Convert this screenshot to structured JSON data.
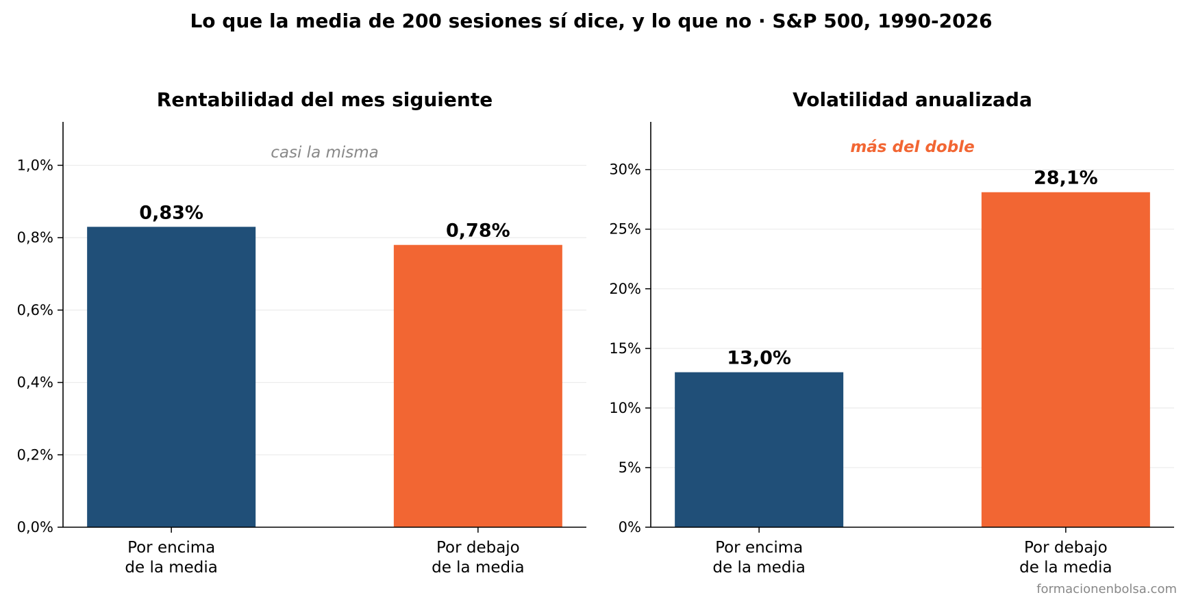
{
  "suptitle": "Lo que la media de 200 sesiones sí dice, y lo que no  ·  S&P 500, 1990-2026",
  "footer": "formacionenbolsa.com",
  "colors": {
    "above": "#204f78",
    "below": "#f26633",
    "text": "#000000",
    "grid": "#ebebeb",
    "muted_annotation": "#888888",
    "highlight_annotation": "#f26633",
    "footer": "#888888"
  },
  "chart_data": [
    {
      "type": "bar",
      "title": "Rentabilidad del mes siguiente",
      "annotation": "casi la misma",
      "annotation_style": "muted",
      "categories": [
        [
          "Por encima",
          "de la media"
        ],
        [
          "Por debajo",
          "de la media"
        ]
      ],
      "values": [
        0.83,
        0.78
      ],
      "value_labels": [
        "0,83%",
        "0,78%"
      ],
      "ylim": [
        0,
        1.12
      ],
      "yticks": [
        0.0,
        0.2,
        0.4,
        0.6,
        0.8,
        1.0
      ],
      "ytick_labels": [
        "0,0%",
        "0,2%",
        "0,4%",
        "0,6%",
        "0,8%",
        "1,0%"
      ],
      "grid": true
    },
    {
      "type": "bar",
      "title": "Volatilidad anualizada",
      "annotation": "más del doble",
      "annotation_style": "highlight",
      "categories": [
        [
          "Por encima",
          "de la media"
        ],
        [
          "Por debajo",
          "de la media"
        ]
      ],
      "values": [
        13.0,
        28.1
      ],
      "value_labels": [
        "13,0%",
        "28,1%"
      ],
      "ylim": [
        0,
        34
      ],
      "yticks": [
        0,
        5,
        10,
        15,
        20,
        25,
        30
      ],
      "ytick_labels": [
        "0%",
        "5%",
        "10%",
        "15%",
        "20%",
        "25%",
        "30%"
      ],
      "grid": true
    }
  ]
}
